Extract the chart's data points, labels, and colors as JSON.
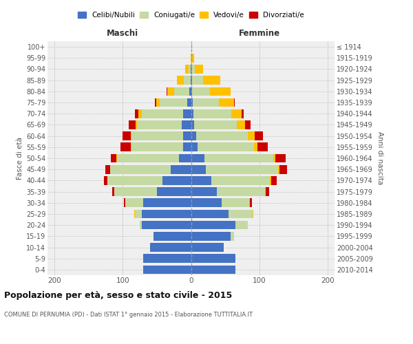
{
  "age_groups": [
    "0-4",
    "5-9",
    "10-14",
    "15-19",
    "20-24",
    "25-29",
    "30-34",
    "35-39",
    "40-44",
    "45-49",
    "50-54",
    "55-59",
    "60-64",
    "65-69",
    "70-74",
    "75-79",
    "80-84",
    "85-89",
    "90-94",
    "95-99",
    "100+"
  ],
  "birth_years": [
    "2010-2014",
    "2005-2009",
    "2000-2004",
    "1995-1999",
    "1990-1994",
    "1985-1989",
    "1980-1984",
    "1975-1979",
    "1970-1974",
    "1965-1969",
    "1960-1964",
    "1955-1959",
    "1950-1954",
    "1945-1949",
    "1940-1944",
    "1935-1939",
    "1930-1934",
    "1925-1929",
    "1920-1924",
    "1915-1919",
    "≤ 1914"
  ],
  "colors": {
    "celibe": "#4472c4",
    "coniugato": "#c5d9a3",
    "vedovo": "#ffc000",
    "divorziato": "#cc0000"
  },
  "maschi": {
    "celibe": [
      70,
      70,
      60,
      55,
      72,
      72,
      70,
      50,
      42,
      30,
      18,
      12,
      12,
      14,
      12,
      6,
      3,
      1,
      1,
      0,
      0
    ],
    "coniugato": [
      0,
      0,
      0,
      0,
      3,
      10,
      26,
      62,
      80,
      88,
      90,
      75,
      75,
      65,
      60,
      40,
      22,
      10,
      3,
      0,
      0
    ],
    "vedovo": [
      0,
      0,
      0,
      0,
      0,
      1,
      0,
      0,
      0,
      0,
      1,
      1,
      1,
      2,
      5,
      5,
      10,
      10,
      5,
      1,
      0
    ],
    "divorziato": [
      0,
      0,
      0,
      0,
      0,
      0,
      2,
      3,
      5,
      7,
      8,
      15,
      12,
      10,
      5,
      2,
      1,
      0,
      0,
      0,
      0
    ]
  },
  "femmine": {
    "nubile": [
      65,
      65,
      48,
      58,
      65,
      55,
      45,
      38,
      30,
      22,
      20,
      10,
      8,
      5,
      4,
      3,
      2,
      2,
      1,
      0,
      0
    ],
    "coniugata": [
      0,
      0,
      0,
      5,
      18,
      35,
      40,
      70,
      85,
      105,
      100,
      82,
      75,
      62,
      55,
      38,
      26,
      16,
      5,
      1,
      0
    ],
    "vedova": [
      0,
      0,
      0,
      0,
      0,
      1,
      1,
      1,
      2,
      2,
      3,
      5,
      10,
      12,
      15,
      22,
      30,
      25,
      12,
      4,
      2
    ],
    "divorziata": [
      0,
      0,
      0,
      0,
      0,
      0,
      3,
      5,
      8,
      12,
      15,
      15,
      12,
      8,
      3,
      1,
      0,
      0,
      0,
      0,
      0
    ]
  },
  "title": "Popolazione per età, sesso e stato civile - 2015",
  "subtitle": "COMUNE DI PERNUMIA (PD) - Dati ISTAT 1° gennaio 2015 - Elaborazione TUTTITALIA.IT",
  "xlabel_left": "Maschi",
  "xlabel_right": "Femmine",
  "ylabel_left": "Fasce di età",
  "ylabel_right": "Anni di nascita",
  "xlim": 210,
  "xticks": [
    -200,
    -100,
    0,
    100,
    200
  ],
  "legend_labels": [
    "Celibi/Nubili",
    "Coniugati/e",
    "Vedovi/e",
    "Divorziati/e"
  ],
  "bg_color": "#efefef",
  "fig_bg": "#ffffff"
}
